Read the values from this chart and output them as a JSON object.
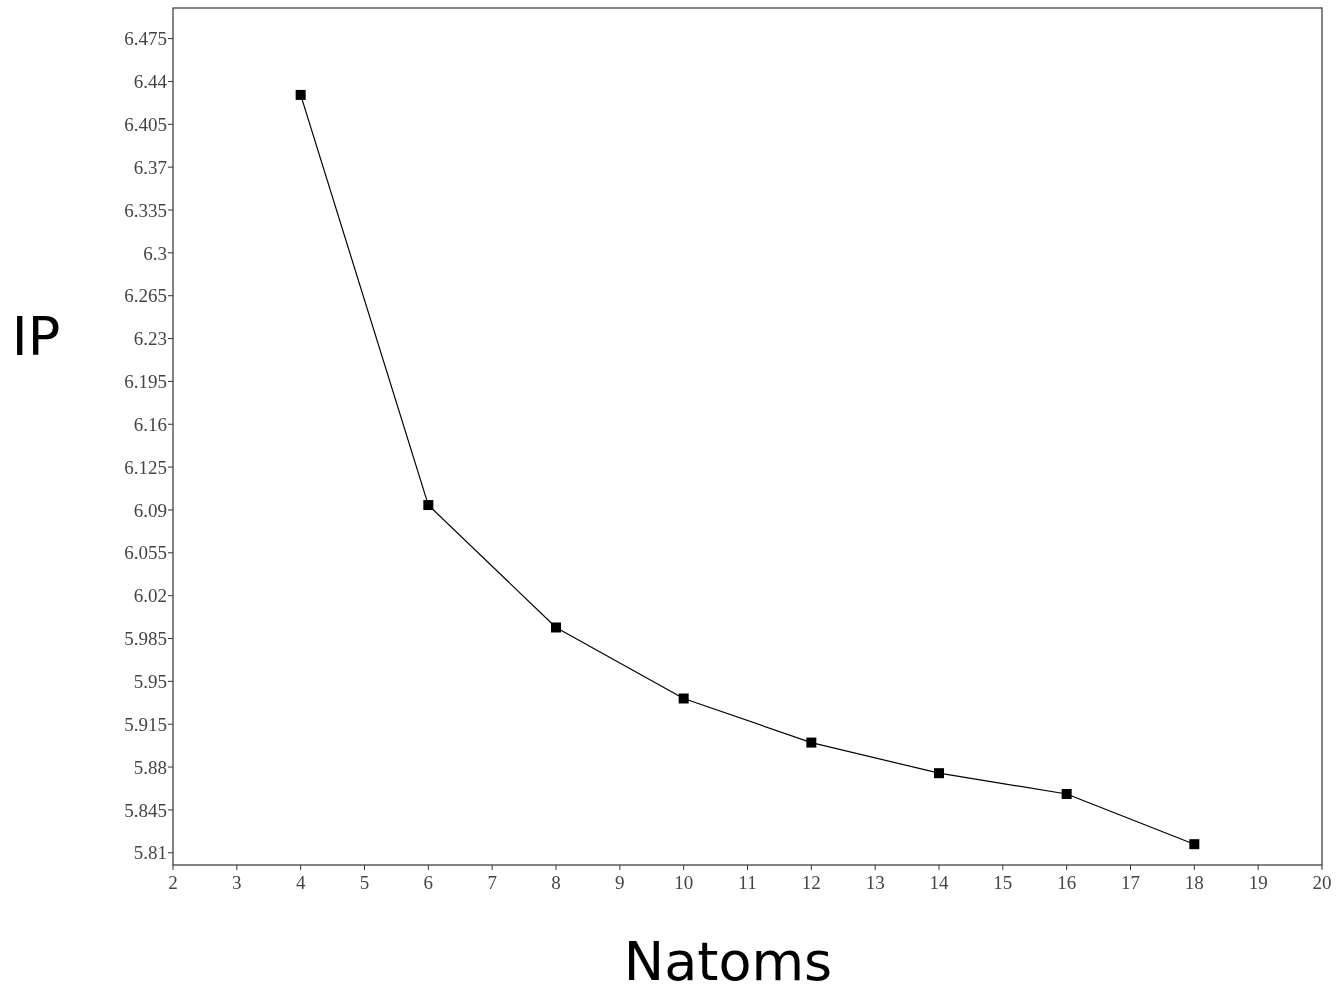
{
  "chart_data": {
    "type": "line",
    "xlabel": "Natoms",
    "ylabel": "IP",
    "x": [
      4,
      6,
      8,
      10,
      12,
      14,
      16,
      18
    ],
    "series": [
      {
        "color": "#000000",
        "values": [
          6.429,
          6.094,
          5.994,
          5.936,
          5.9,
          5.875,
          5.858,
          5.817
        ]
      }
    ],
    "xlim": [
      2,
      20
    ],
    "xticks": [
      2,
      3,
      4,
      5,
      6,
      7,
      8,
      9,
      10,
      11,
      12,
      13,
      14,
      15,
      16,
      17,
      18,
      19,
      20
    ],
    "ylim": [
      5.8,
      6.5
    ],
    "yticks": [
      5.81,
      5.845,
      5.88,
      5.915,
      5.95,
      5.985,
      6.02,
      6.055,
      6.09,
      6.125,
      6.16,
      6.195,
      6.23,
      6.265,
      6.3,
      6.335,
      6.37,
      6.405,
      6.44,
      6.475
    ],
    "marker": "square",
    "line_style": "solid",
    "grid": false
  }
}
